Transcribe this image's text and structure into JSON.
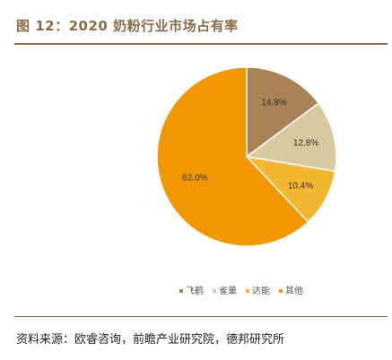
{
  "header": {
    "title": "图 12：2020 奶粉行业市场占有率"
  },
  "footer": {
    "source": "资料来源：欧睿咨询，前瞻产业研究院，德邦研究所"
  },
  "chart_data": {
    "type": "pie",
    "title": "",
    "categories": [
      "飞鹤",
      "雀巢",
      "达能",
      "其他"
    ],
    "values": [
      14.8,
      12.8,
      10.4,
      62.0
    ],
    "labels": [
      "14.8%",
      "12.8%",
      "10.4%",
      "62.0%"
    ],
    "colors": [
      "#a98257",
      "#d9c9a0",
      "#f3b631",
      "#f39700"
    ],
    "legend_position": "bottom"
  }
}
